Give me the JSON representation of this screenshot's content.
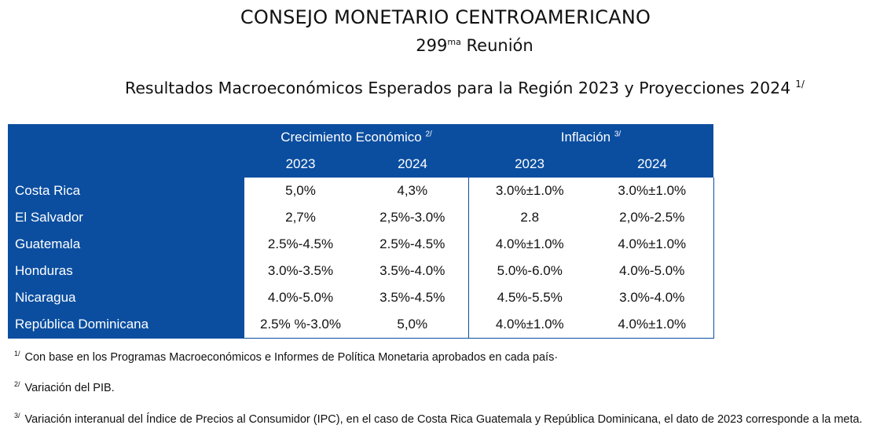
{
  "header": {
    "title": "CONSEJO MONETARIO CENTROAMERICANO",
    "meeting_number": "299",
    "meeting_ordinal": "ma",
    "meeting_word": "Reunión",
    "table_heading": "Resultados Macroeconómicos Esperados para la Región 2023 y Proyecciones 2024",
    "table_heading_note": "1/"
  },
  "table": {
    "group_growth": {
      "label": "Crecimiento Económico",
      "note": "2/"
    },
    "group_inflation": {
      "label": "Inflación",
      "note": "3/"
    },
    "years": [
      "2023",
      "2024",
      "2023",
      "2024"
    ],
    "rows": [
      {
        "country": "Costa Rica",
        "values": [
          "5,0%",
          "4,3%",
          "3.0%±1.0%",
          "3.0%±1.0%"
        ]
      },
      {
        "country": "El Salvador",
        "values": [
          "2,7%",
          "2,5%-3.0%",
          "2.8",
          "2,0%-2.5%"
        ]
      },
      {
        "country": "Guatemala",
        "values": [
          "2.5%-4.5%",
          "2.5%-4.5%",
          "4.0%±1.0%",
          "4.0%±1.0%"
        ]
      },
      {
        "country": "Honduras",
        "values": [
          "3.0%-3.5%",
          "3.5%-4.0%",
          "5.0%-6.0%",
          "4.0%-5.0%"
        ]
      },
      {
        "country": "Nicaragua",
        "values": [
          "4.0%-5.0%",
          "3.5%-4.5%",
          "4.5%-5.5%",
          "3.0%-4.0%"
        ]
      },
      {
        "country": "República Dominicana",
        "values": [
          "2.5% %-3.0%",
          "5,0%",
          "4.0%±1.0%",
          "4.0%±1.0%"
        ]
      }
    ]
  },
  "notes": [
    {
      "mark": "1/",
      "text": "Con base en los Programas Macroeconómicos e Informes de Política Monetaria aprobados en cada país·"
    },
    {
      "mark": "2/",
      "text": "Variación del PIB."
    },
    {
      "mark": "3/",
      "text": "Variación interanual del Índice de Precios al Consumidor (IPC), en el caso de Costa Rica Guatemala y República Dominicana, el dato de 2023 corresponde a la meta."
    }
  ],
  "colors": {
    "header_blue": "#0b4ea0"
  }
}
